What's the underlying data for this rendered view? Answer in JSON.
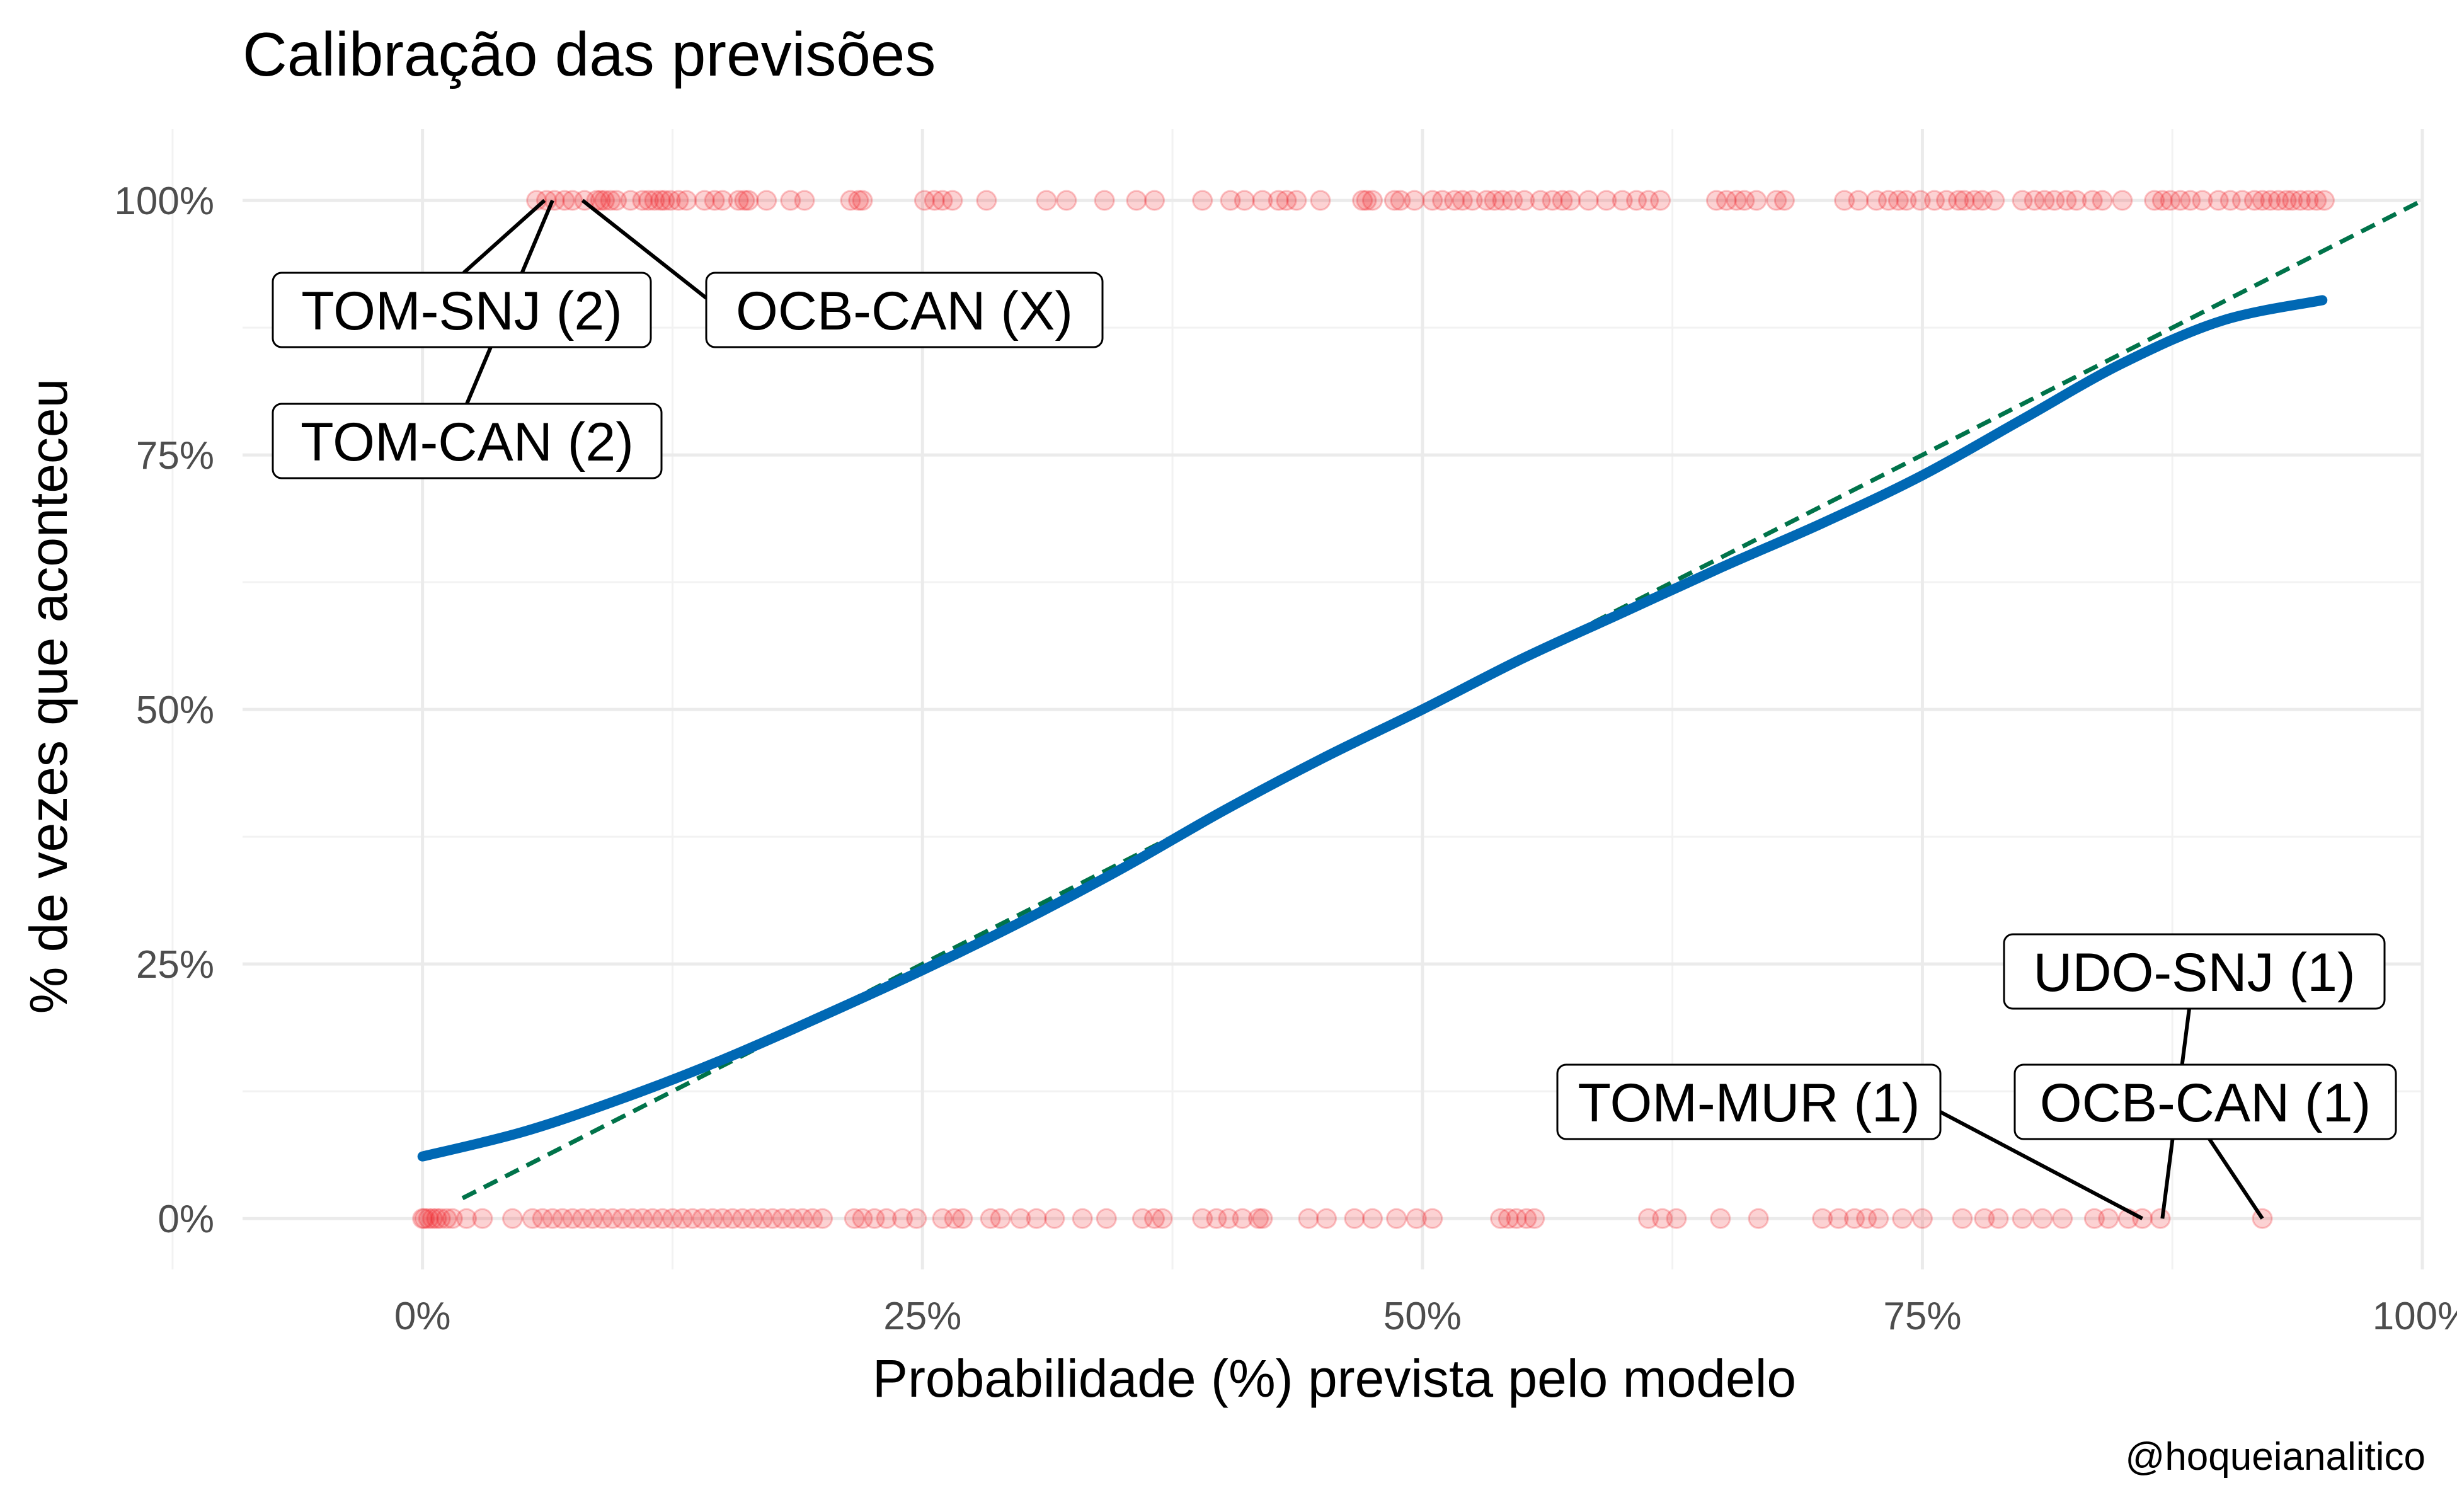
{
  "chart_data": {
    "type": "scatter",
    "title": "Calibração das previsões",
    "xlabel": "Probabilidade (%) prevista pelo modelo",
    "ylabel": "% de vezes que aconteceu",
    "caption": "@hoqueianalitico",
    "xlim": [
      -0.09,
      1.0
    ],
    "ylim": [
      -0.05,
      1.07
    ],
    "x_ticks": [
      0,
      0.25,
      0.5,
      0.75,
      1.0
    ],
    "x_tick_labels": [
      "0%",
      "25%",
      "50%",
      "75%",
      "100%"
    ],
    "y_ticks": [
      0,
      0.25,
      0.5,
      0.75,
      1.0
    ],
    "y_tick_labels": [
      "0%",
      "25%",
      "50%",
      "75%",
      "100%"
    ],
    "grid": true,
    "colors": {
      "points": "#ee1c25",
      "smooth": "#0068b4",
      "reference": "#00734a"
    },
    "points_y1": [
      0.057,
      0.062,
      0.066,
      0.071,
      0.075,
      0.081,
      0.087,
      0.089,
      0.091,
      0.094,
      0.097,
      0.104,
      0.11,
      0.113,
      0.116,
      0.119,
      0.121,
      0.124,
      0.128,
      0.132,
      0.141,
      0.146,
      0.15,
      0.158,
      0.161,
      0.163,
      0.172,
      0.184,
      0.191,
      0.214,
      0.218,
      0.22,
      0.251,
      0.256,
      0.26,
      0.265,
      0.282,
      0.312,
      0.322,
      0.341,
      0.357,
      0.366,
      0.39,
      0.404,
      0.411,
      0.42,
      0.428,
      0.432,
      0.437,
      0.449,
      0.47,
      0.472,
      0.475,
      0.486,
      0.489,
      0.496,
      0.505,
      0.51,
      0.516,
      0.52,
      0.525,
      0.532,
      0.536,
      0.54,
      0.545,
      0.551,
      0.559,
      0.565,
      0.57,
      0.574,
      0.583,
      0.592,
      0.6,
      0.607,
      0.613,
      0.619,
      0.647,
      0.652,
      0.657,
      0.661,
      0.667,
      0.677,
      0.681,
      0.711,
      0.718,
      0.727,
      0.733,
      0.738,
      0.742,
      0.749,
      0.756,
      0.762,
      0.768,
      0.771,
      0.776,
      0.78,
      0.786,
      0.8,
      0.806,
      0.811,
      0.816,
      0.822,
      0.827,
      0.835,
      0.84,
      0.85,
      0.866,
      0.87,
      0.874,
      0.879,
      0.884,
      0.89,
      0.898,
      0.904,
      0.91,
      0.916,
      0.92,
      0.924,
      0.928,
      0.932,
      0.935,
      0.939,
      0.943,
      0.947,
      0.951
    ],
    "points_y0": [
      0.0,
      0.001,
      0.003,
      0.005,
      0.007,
      0.009,
      0.012,
      0.015,
      0.022,
      0.03,
      0.045,
      0.055,
      0.06,
      0.065,
      0.07,
      0.075,
      0.08,
      0.085,
      0.09,
      0.095,
      0.1,
      0.105,
      0.11,
      0.115,
      0.12,
      0.125,
      0.13,
      0.135,
      0.14,
      0.145,
      0.15,
      0.155,
      0.16,
      0.165,
      0.17,
      0.175,
      0.18,
      0.185,
      0.19,
      0.195,
      0.2,
      0.216,
      0.22,
      0.226,
      0.232,
      0.24,
      0.247,
      0.26,
      0.266,
      0.27,
      0.284,
      0.289,
      0.299,
      0.307,
      0.316,
      0.33,
      0.342,
      0.36,
      0.366,
      0.37,
      0.39,
      0.397,
      0.403,
      0.41,
      0.418,
      0.42,
      0.443,
      0.452,
      0.466,
      0.475,
      0.487,
      0.497,
      0.505,
      0.539,
      0.543,
      0.547,
      0.552,
      0.556,
      0.613,
      0.62,
      0.627,
      0.649,
      0.668,
      0.7,
      0.708,
      0.716,
      0.722,
      0.728,
      0.74,
      0.75,
      0.77,
      0.781,
      0.788,
      0.8,
      0.81,
      0.82,
      0.836,
      0.843,
      0.853,
      0.86,
      0.869,
      0.92
    ],
    "smooth_curve": [
      [
        0.0,
        0.061
      ],
      [
        0.05,
        0.085
      ],
      [
        0.1,
        0.118
      ],
      [
        0.15,
        0.156
      ],
      [
        0.2,
        0.199
      ],
      [
        0.25,
        0.244
      ],
      [
        0.3,
        0.292
      ],
      [
        0.35,
        0.344
      ],
      [
        0.4,
        0.4
      ],
      [
        0.45,
        0.452
      ],
      [
        0.5,
        0.5
      ],
      [
        0.55,
        0.55
      ],
      [
        0.6,
        0.595
      ],
      [
        0.65,
        0.64
      ],
      [
        0.7,
        0.683
      ],
      [
        0.75,
        0.73
      ],
      [
        0.8,
        0.785
      ],
      [
        0.85,
        0.84
      ],
      [
        0.9,
        0.882
      ],
      [
        0.95,
        0.902
      ]
    ],
    "reference_line": [
      [
        0.02,
        0.02
      ],
      [
        1.0,
        1.0
      ]
    ],
    "annotations": [
      {
        "label": "TOM-SNJ (2)",
        "x": 0.061,
        "y": 1.0
      },
      {
        "label": "OCB-CAN (X)",
        "x": 0.08,
        "y": 1.0
      },
      {
        "label": "TOM-CAN (2)",
        "x": 0.065,
        "y": 1.0
      },
      {
        "label": "UDO-SNJ (1)",
        "x": 0.87,
        "y": 0.0
      },
      {
        "label": "TOM-MUR (1)",
        "x": 0.86,
        "y": 0.0
      },
      {
        "label": "OCB-CAN (1)",
        "x": 0.92,
        "y": 0.0
      }
    ]
  }
}
